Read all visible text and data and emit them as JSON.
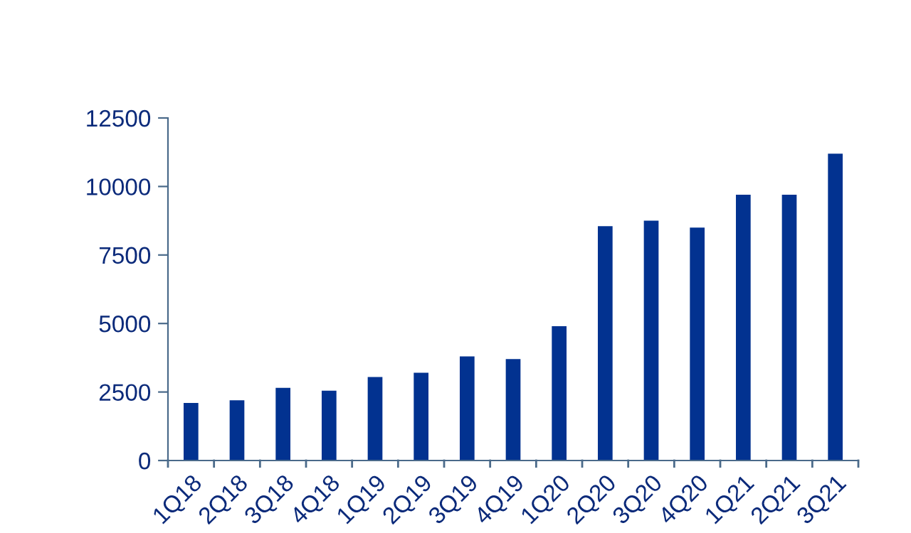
{
  "chart_data": {
    "type": "bar",
    "categories": [
      "1Q18",
      "2Q18",
      "3Q18",
      "4Q18",
      "1Q19",
      "2Q19",
      "3Q19",
      "4Q19",
      "1Q20",
      "2Q20",
      "3Q20",
      "4Q20",
      "1Q21",
      "2Q21",
      "3Q21"
    ],
    "values": [
      2100,
      2200,
      2650,
      2550,
      3050,
      3200,
      3800,
      3700,
      4900,
      8550,
      8750,
      8500,
      9700,
      9700,
      11200
    ],
    "color": "#023290",
    "ylim": [
      0,
      12500
    ],
    "yticks": [
      0,
      2500,
      5000,
      7500,
      10000,
      12500
    ],
    "grid": false
  }
}
